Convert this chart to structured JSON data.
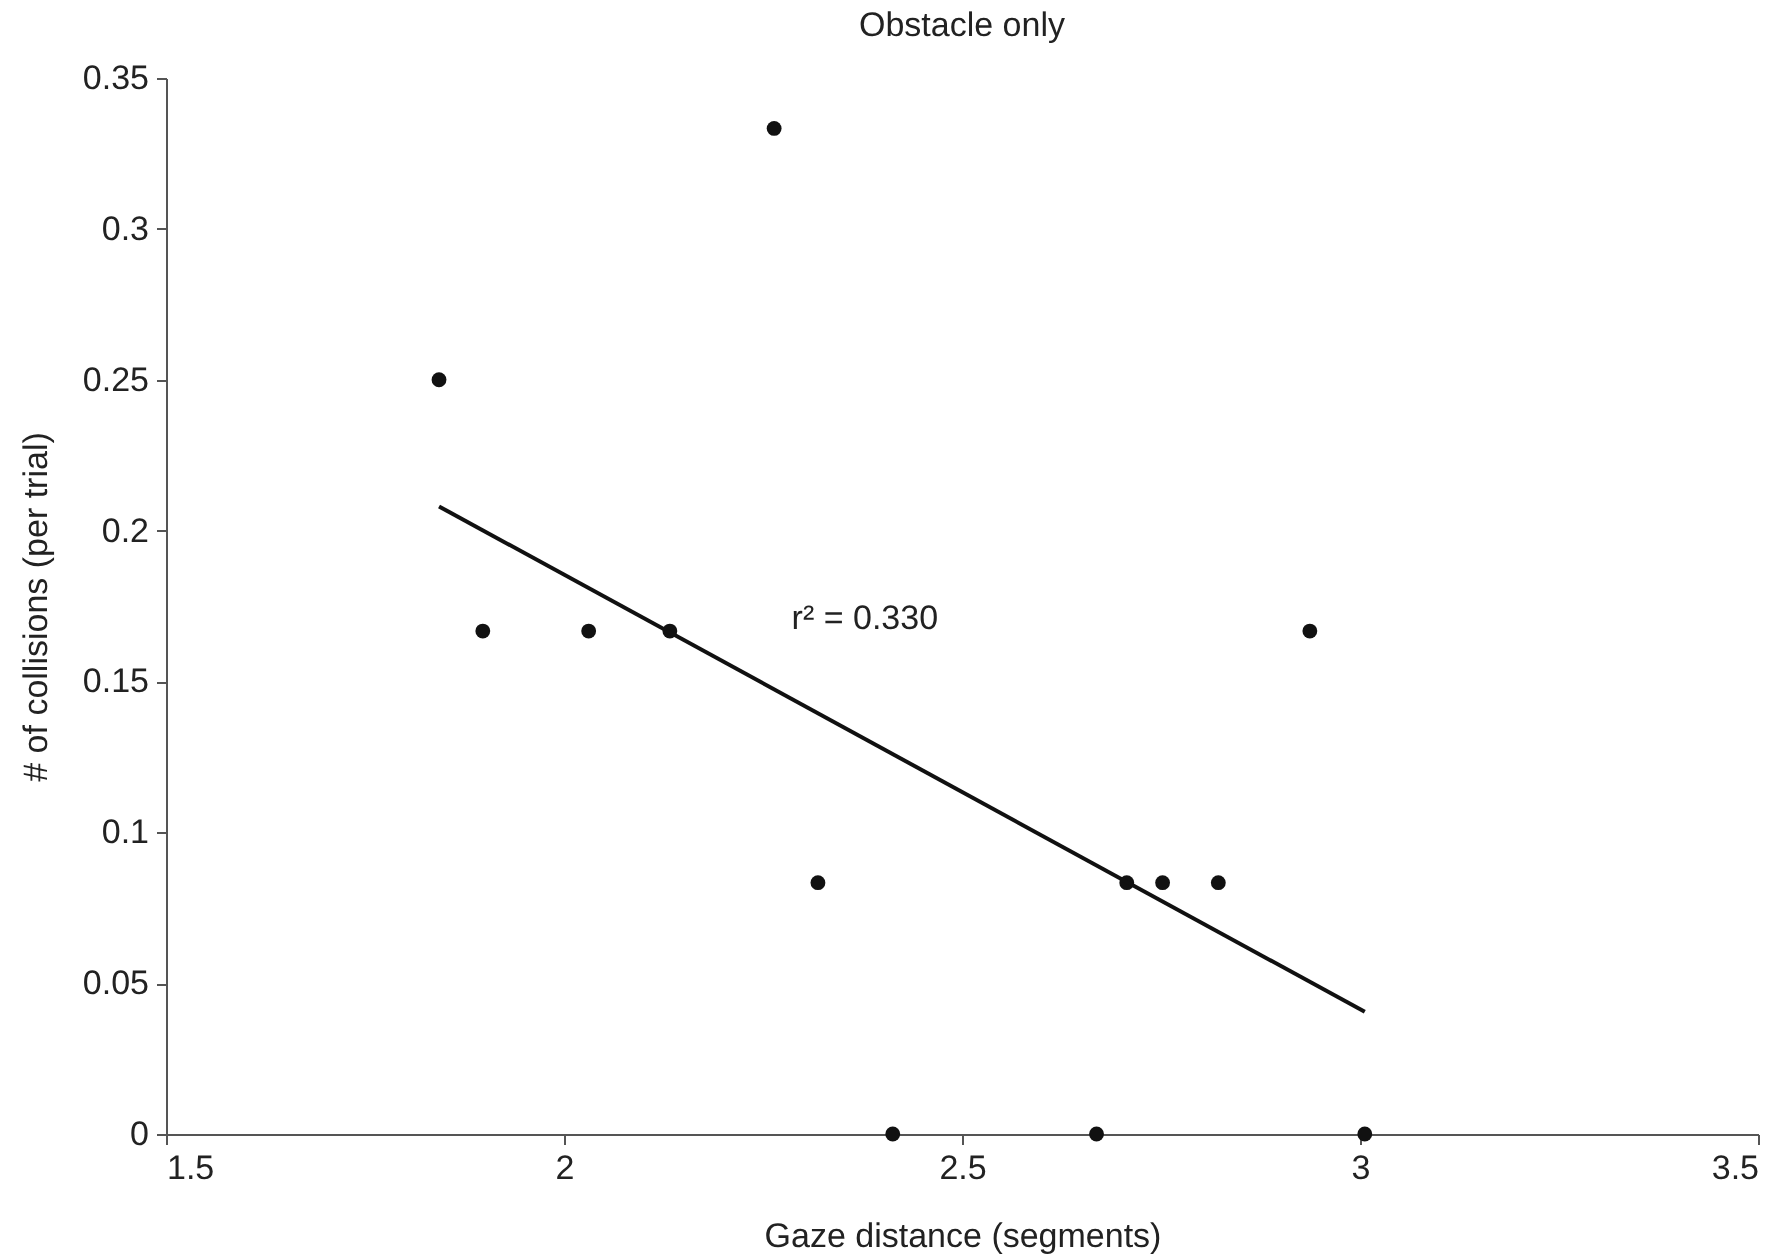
{
  "chart_data": {
    "type": "scatter",
    "title": "Obstacle only",
    "xlabel": "Gaze distance (segments)",
    "ylabel": "# of collisions (per trial)",
    "xlim": [
      1.5,
      3.5
    ],
    "xticks": [
      1.5,
      2,
      2.5,
      3,
      3.5
    ],
    "ylim": [
      0,
      0.35
    ],
    "yticks": [
      0,
      0.05,
      0.1,
      0.15,
      0.2,
      0.25,
      0.3,
      0.35
    ],
    "grid": false,
    "annotations": [
      "r² = 0.330"
    ],
    "series": [
      {
        "marker": "circle",
        "color": "#111111",
        "x": [
          1.843,
          1.898,
          2.031,
          2.133,
          2.264,
          2.319,
          2.413,
          2.669,
          2.707,
          2.752,
          2.822,
          2.937,
          3.006
        ],
        "values": [
          0.25,
          0.1667,
          0.1667,
          0.1667,
          0.3333,
          0.0833,
          0,
          0,
          0.0833,
          0.0833,
          0.0833,
          0.1667,
          0
        ]
      },
      {
        "type": "line",
        "color": "#111111",
        "line_style": "solid",
        "x": [
          1.843,
          3.006
        ],
        "values": [
          0.208,
          0.0405
        ]
      }
    ]
  }
}
